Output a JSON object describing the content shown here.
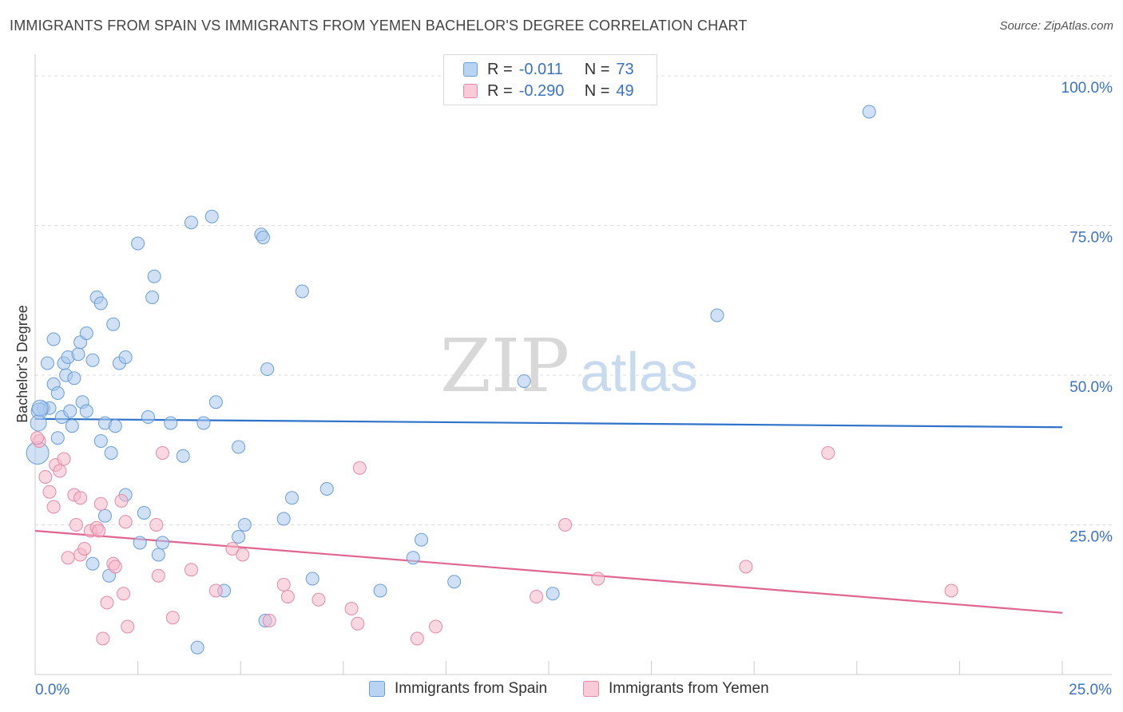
{
  "title": "IMMIGRANTS FROM SPAIN VS IMMIGRANTS FROM YEMEN BACHELOR'S DEGREE CORRELATION CHART",
  "source": "Source: ZipAtlas.com",
  "watermark": {
    "zip": "ZIP",
    "atlas": "atlas"
  },
  "legend": {
    "r_label": "R =",
    "n_label": "N =",
    "series": [
      {
        "name": "Immigrants from Spain",
        "r": "-0.011",
        "n": "73"
      },
      {
        "name": "Immigrants from Yemen",
        "r": "-0.290",
        "n": "49"
      }
    ]
  },
  "colors": {
    "spain_fill": "#a9c8ef",
    "spain_stroke": "#6a9fd8",
    "spain_line": "#2f72c9",
    "yemen_fill": "#f5b8cb",
    "yemen_stroke": "#e68aa8",
    "yemen_line": "#e0668f",
    "axis_label": "#3b73c4",
    "grid": "#dddddd"
  },
  "chart_data": {
    "type": "scatter",
    "title": "IMMIGRANTS FROM SPAIN VS IMMIGRANTS FROM YEMEN BACHELOR'S DEGREE CORRELATION CHART",
    "xlabel": "",
    "ylabel": "Bachelor's Degree",
    "xlim": [
      0,
      25
    ],
    "ylim": [
      0,
      102
    ],
    "x_tick_labels": [
      {
        "value": 0,
        "label": "0.0%"
      },
      {
        "value": 25,
        "label": "25.0%"
      }
    ],
    "y_tick_labels": [
      {
        "value": 25,
        "label": "25.0%"
      },
      {
        "value": 50,
        "label": "50.0%"
      },
      {
        "value": 75,
        "label": "75.0%"
      },
      {
        "value": 100,
        "label": "100.0%"
      }
    ],
    "legend_position": "top-center",
    "series": [
      {
        "name": "Immigrants from Spain",
        "trend": {
          "x": [
            0,
            25
          ],
          "y": [
            42.7,
            41.3
          ]
        },
        "points": [
          [
            0.2,
            44.5
          ],
          [
            0.3,
            52
          ],
          [
            0.35,
            44.5
          ],
          [
            0.45,
            56
          ],
          [
            0.45,
            48.5
          ],
          [
            0.55,
            47
          ],
          [
            0.55,
            39.5
          ],
          [
            0.65,
            43
          ],
          [
            0.7,
            52
          ],
          [
            0.75,
            50
          ],
          [
            0.8,
            53
          ],
          [
            0.85,
            44
          ],
          [
            0.9,
            41.5
          ],
          [
            0.95,
            49.5
          ],
          [
            1.05,
            53.5
          ],
          [
            1.1,
            55.5
          ],
          [
            1.15,
            45.5
          ],
          [
            1.25,
            57
          ],
          [
            1.25,
            44
          ],
          [
            1.4,
            52.5
          ],
          [
            1.5,
            63
          ],
          [
            1.6,
            62
          ],
          [
            1.6,
            39
          ],
          [
            1.7,
            42
          ],
          [
            1.7,
            26.5
          ],
          [
            1.85,
            37
          ],
          [
            1.9,
            58.5
          ],
          [
            1.95,
            41.5
          ],
          [
            2.05,
            52
          ],
          [
            2.2,
            30
          ],
          [
            2.2,
            53
          ],
          [
            2.5,
            72
          ],
          [
            2.55,
            22
          ],
          [
            2.65,
            27
          ],
          [
            2.75,
            43
          ],
          [
            2.85,
            63
          ],
          [
            2.9,
            66.5
          ],
          [
            3.0,
            20
          ],
          [
            3.1,
            22
          ],
          [
            3.3,
            42
          ],
          [
            3.6,
            36.5
          ],
          [
            3.8,
            75.5
          ],
          [
            3.95,
            4.5
          ],
          [
            4.1,
            42
          ],
          [
            4.3,
            76.5
          ],
          [
            4.4,
            45.5
          ],
          [
            4.6,
            14
          ],
          [
            4.95,
            38
          ],
          [
            4.95,
            23
          ],
          [
            5.1,
            25
          ],
          [
            5.5,
            73.5
          ],
          [
            5.55,
            73
          ],
          [
            5.6,
            9
          ],
          [
            5.65,
            51
          ],
          [
            6.05,
            26
          ],
          [
            6.25,
            29.5
          ],
          [
            6.5,
            64
          ],
          [
            6.75,
            16
          ],
          [
            7.1,
            31
          ],
          [
            11.9,
            49
          ],
          [
            8.4,
            14
          ],
          [
            9.2,
            19.5
          ],
          [
            9.4,
            22.5
          ],
          [
            10.2,
            15.5
          ],
          [
            12.6,
            13.5
          ],
          [
            16.6,
            60
          ],
          [
            20.3,
            94
          ],
          [
            1.4,
            18.5
          ],
          [
            1.8,
            16.5
          ],
          [
            0.1,
            44
          ],
          [
            0.08,
            42
          ],
          [
            0.06,
            37
          ],
          [
            0.12,
            44.5
          ]
        ]
      },
      {
        "name": "Immigrants from Yemen",
        "trend": {
          "x": [
            0,
            25
          ],
          "y": [
            24,
            10.3
          ]
        },
        "points": [
          [
            0.1,
            39
          ],
          [
            0.25,
            33
          ],
          [
            0.35,
            30.5
          ],
          [
            0.45,
            28
          ],
          [
            0.5,
            35
          ],
          [
            0.6,
            34
          ],
          [
            0.7,
            36
          ],
          [
            0.8,
            19.5
          ],
          [
            0.95,
            30
          ],
          [
            1.0,
            25
          ],
          [
            1.1,
            29.5
          ],
          [
            1.1,
            20
          ],
          [
            1.2,
            21
          ],
          [
            1.35,
            24
          ],
          [
            1.5,
            24.5
          ],
          [
            1.55,
            24
          ],
          [
            1.6,
            28.5
          ],
          [
            1.65,
            6
          ],
          [
            1.75,
            12
          ],
          [
            1.9,
            18.5
          ],
          [
            1.95,
            18
          ],
          [
            2.1,
            29
          ],
          [
            2.15,
            13.5
          ],
          [
            2.2,
            25.5
          ],
          [
            2.25,
            8
          ],
          [
            2.95,
            25
          ],
          [
            3.0,
            16.5
          ],
          [
            3.1,
            37
          ],
          [
            3.35,
            9.5
          ],
          [
            3.8,
            17.5
          ],
          [
            4.4,
            14
          ],
          [
            4.8,
            21
          ],
          [
            5.05,
            20
          ],
          [
            5.7,
            9
          ],
          [
            6.05,
            15
          ],
          [
            6.15,
            13
          ],
          [
            6.9,
            12.5
          ],
          [
            7.7,
            11
          ],
          [
            7.85,
            8.5
          ],
          [
            7.9,
            34.5
          ],
          [
            9.3,
            6
          ],
          [
            9.75,
            8
          ],
          [
            12.2,
            13
          ],
          [
            12.9,
            25
          ],
          [
            13.7,
            16
          ],
          [
            17.3,
            18
          ],
          [
            19.3,
            37
          ],
          [
            22.3,
            14
          ],
          [
            0.05,
            39.5
          ]
        ]
      }
    ]
  }
}
